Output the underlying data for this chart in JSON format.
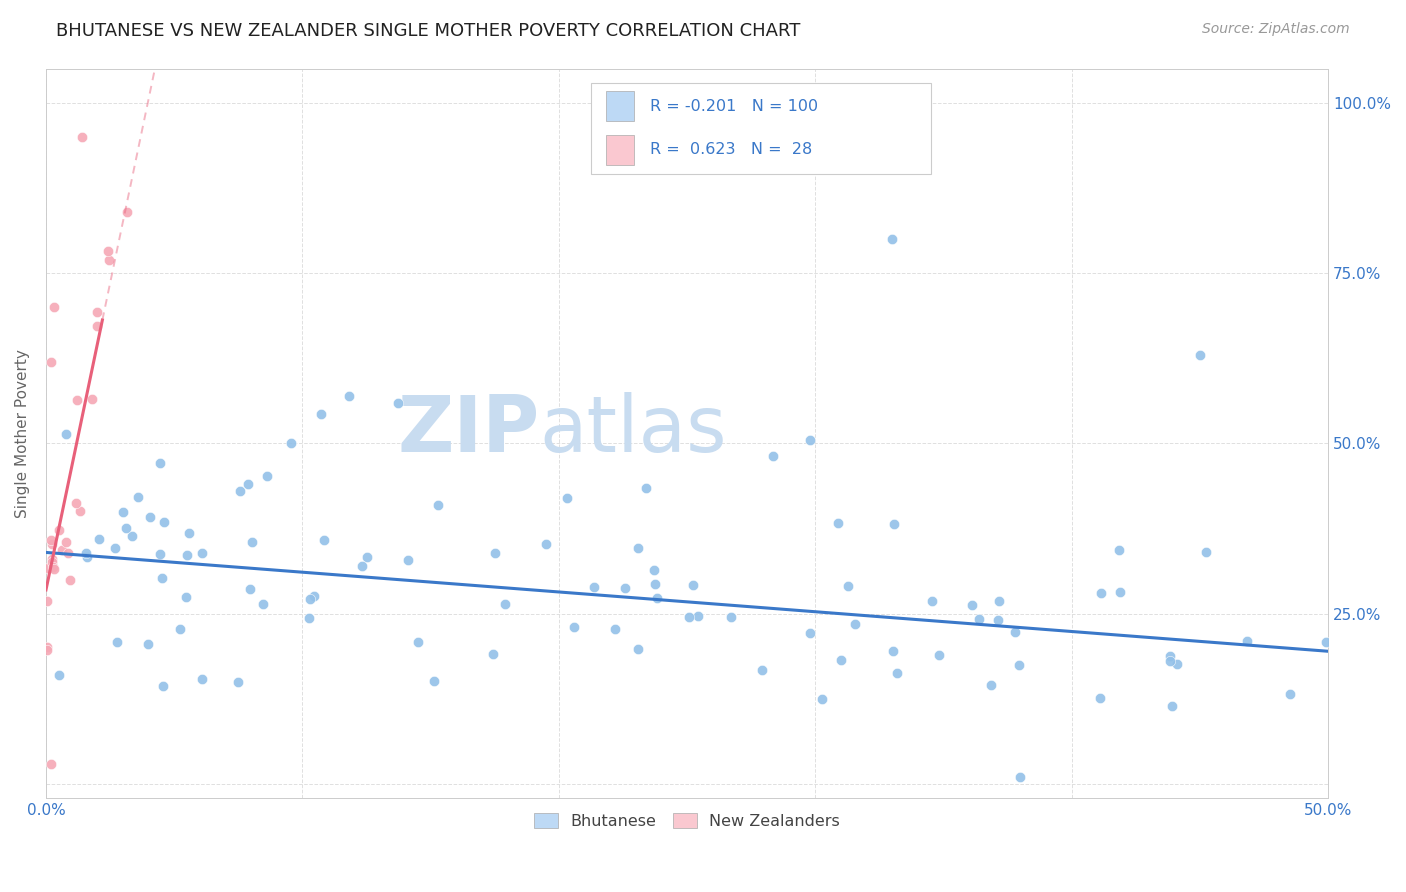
{
  "title": "BHUTANESE VS NEW ZEALANDER SINGLE MOTHER POVERTY CORRELATION CHART",
  "source": "Source: ZipAtlas.com",
  "ylabel": "Single Mother Poverty",
  "right_yticks": [
    0.0,
    0.25,
    0.5,
    0.75,
    1.0
  ],
  "right_yticklabels": [
    "",
    "25.0%",
    "50.0%",
    "75.0%",
    "100.0%"
  ],
  "xlim": [
    0.0,
    0.5
  ],
  "ylim": [
    -0.02,
    1.05
  ],
  "blue_R": -0.201,
  "blue_N": 100,
  "pink_R": 0.623,
  "pink_N": 28,
  "blue_color": "#92C0E8",
  "pink_color": "#F5A8B5",
  "blue_line_color": "#3A78C9",
  "pink_line_color": "#E8607A",
  "blue_legend_color": "#BDD9F5",
  "pink_legend_color": "#FAC8D0",
  "text_color": "#3A78C9",
  "title_color": "#222222",
  "watermark_zip": "ZIP",
  "watermark_atlas": "atlas",
  "watermark_color": "#C8DCF0",
  "background_color": "#ffffff",
  "grid_color": "#e0e0e0",
  "blue_line_y0": 0.34,
  "blue_line_y1": 0.195,
  "pink_line_slope": 18.0,
  "pink_line_intercept": 0.285
}
